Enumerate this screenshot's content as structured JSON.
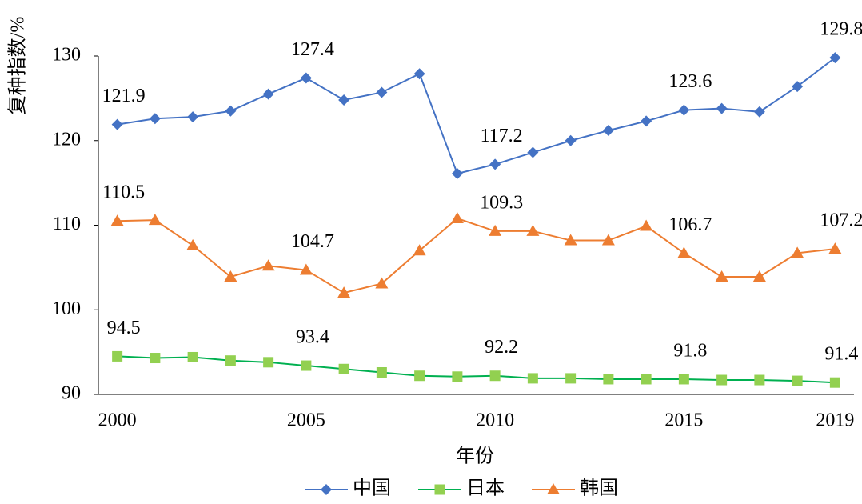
{
  "chart_data": {
    "type": "line",
    "y_label": "复种指数/%",
    "x_label": "年份",
    "x": [
      2000,
      2001,
      2002,
      2003,
      2004,
      2005,
      2006,
      2007,
      2008,
      2009,
      2010,
      2011,
      2012,
      2013,
      2014,
      2015,
      2016,
      2017,
      2018,
      2019
    ],
    "xlim": [
      1999.5,
      2019.5
    ],
    "xticks": [
      2000,
      2005,
      2010,
      2015,
      2019
    ],
    "ylim": [
      90,
      130
    ],
    "yticks": [
      90,
      100,
      110,
      120,
      130
    ],
    "grid": false,
    "legend": "bottom",
    "series": [
      {
        "name": "中国",
        "color": "#4472c4",
        "marker": "diamond",
        "marker_color": "#4472c4",
        "values": [
          121.9,
          122.6,
          122.8,
          123.5,
          125.5,
          127.4,
          124.8,
          125.7,
          127.9,
          116.1,
          117.2,
          118.6,
          120.0,
          121.2,
          122.3,
          123.6,
          123.8,
          123.4,
          126.4,
          129.8
        ],
        "value_labels": [
          "121.9",
          null,
          null,
          null,
          null,
          "127.4",
          null,
          null,
          null,
          null,
          "117.2",
          null,
          null,
          null,
          null,
          "123.6",
          null,
          null,
          null,
          "129.8"
        ]
      },
      {
        "name": "日本",
        "color": "#00b050",
        "marker": "square",
        "marker_color": "#92d050",
        "values": [
          94.5,
          94.3,
          94.4,
          94.0,
          93.8,
          93.4,
          93.0,
          92.6,
          92.2,
          92.1,
          92.2,
          91.9,
          91.9,
          91.8,
          91.8,
          91.8,
          91.7,
          91.7,
          91.6,
          91.4
        ],
        "value_labels": [
          "94.5",
          null,
          null,
          null,
          null,
          "93.4",
          null,
          null,
          null,
          null,
          "92.2",
          null,
          null,
          null,
          null,
          "91.8",
          null,
          null,
          null,
          "91.4"
        ]
      },
      {
        "name": "韩国",
        "color": "#ed7d31",
        "marker": "triangle",
        "marker_color": "#ed7d31",
        "values": [
          110.5,
          110.6,
          107.6,
          103.9,
          105.2,
          104.7,
          102.0,
          103.1,
          107.0,
          110.8,
          109.3,
          109.3,
          108.2,
          108.2,
          109.9,
          106.7,
          103.9,
          103.9,
          106.7,
          107.2
        ],
        "value_labels": [
          "110.5",
          null,
          null,
          null,
          null,
          "104.7",
          null,
          null,
          null,
          null,
          "109.3",
          null,
          null,
          null,
          null,
          "106.7",
          null,
          null,
          null,
          "107.2"
        ]
      }
    ]
  }
}
